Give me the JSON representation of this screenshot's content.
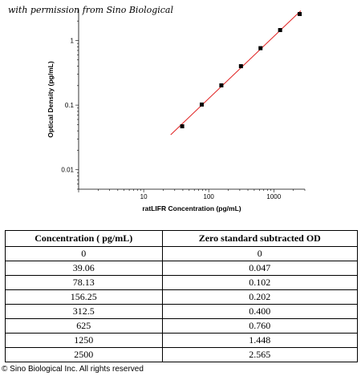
{
  "permission_note": "with permission from Sino Biological",
  "chart_data": {
    "type": "scatter",
    "xlabel": "ratLIFR Concentration (pg/mL)",
    "ylabel": "Optical Density (pg/mL)",
    "xscale": "log",
    "yscale": "log",
    "xlim": [
      1,
      3000
    ],
    "ylim": [
      0.005,
      3
    ],
    "xticks": [
      {
        "value": 10,
        "label": "10"
      },
      {
        "value": 100,
        "label": "100"
      },
      {
        "value": 1000,
        "label": "1000"
      }
    ],
    "yticks": [
      {
        "value": 0.01,
        "label": "0.01"
      },
      {
        "value": 0.1,
        "label": "0.1"
      },
      {
        "value": 1,
        "label": "1"
      }
    ],
    "grid": false,
    "points": [
      {
        "x": 39.06,
        "y": 0.047
      },
      {
        "x": 78.13,
        "y": 0.102
      },
      {
        "x": 156.25,
        "y": 0.202
      },
      {
        "x": 312.5,
        "y": 0.4
      },
      {
        "x": 625,
        "y": 0.76
      },
      {
        "x": 1250,
        "y": 1.448
      },
      {
        "x": 2500,
        "y": 2.565
      }
    ],
    "fit_line": {
      "color": "#e02020",
      "x_range": [
        26,
        2600
      ]
    },
    "marker_color": "#000000"
  },
  "table": {
    "headers": [
      "Concentration ( pg/mL)",
      "Zero standard subtracted OD"
    ],
    "rows": [
      [
        "0",
        "0"
      ],
      [
        "39.06",
        "0.047"
      ],
      [
        "78.13",
        "0.102"
      ],
      [
        "156.25",
        "0.202"
      ],
      [
        "312.5",
        "0.400"
      ],
      [
        "625",
        "0.760"
      ],
      [
        "1250",
        "1.448"
      ],
      [
        "2500",
        "2.565"
      ]
    ]
  },
  "copyright": "© Sino Biological Inc. All rights reserved"
}
